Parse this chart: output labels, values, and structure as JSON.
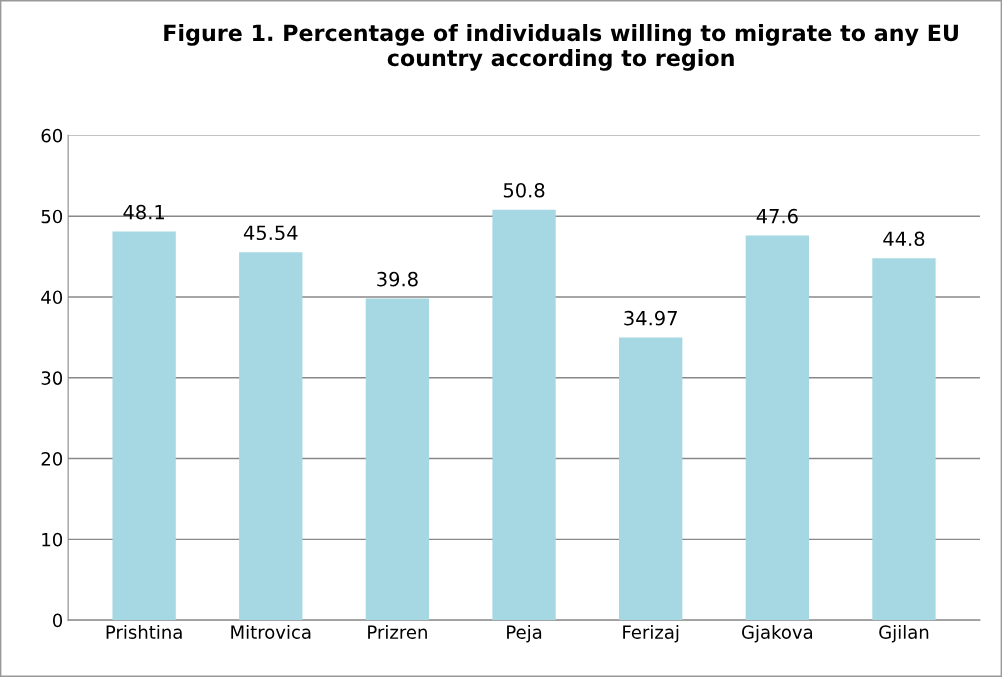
{
  "chart_data": {
    "type": "bar",
    "title": "Figure 1. Percentage of individuals willing to migrate to any EU country according to region",
    "categories": [
      "Prishtina",
      "Mitrovica",
      "Prizren",
      "Peja",
      "Ferizaj",
      "Gjakova",
      "Gjilan"
    ],
    "values": [
      48.1,
      45.54,
      39.8,
      50.8,
      34.97,
      47.6,
      44.8
    ],
    "color": "#a5d8e2",
    "ylim": [
      0,
      60
    ],
    "yticks": [
      0,
      10,
      20,
      30,
      40,
      50,
      60
    ],
    "grid": "y",
    "data_labels": true
  }
}
